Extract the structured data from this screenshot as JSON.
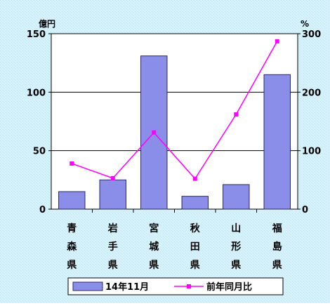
{
  "chart_data": {
    "type": "bar",
    "categories": [
      "青森県",
      "岩手県",
      "宮城県",
      "秋田県",
      "山形県",
      "福島県"
    ],
    "series": [
      {
        "name": "14年11月",
        "type": "bar",
        "axis": "left",
        "values": [
          15,
          25,
          131,
          11,
          21,
          115
        ]
      },
      {
        "name": "前年同月比",
        "type": "line",
        "axis": "right",
        "values": [
          78,
          53,
          131,
          52,
          162,
          287
        ]
      }
    ],
    "left_axis": {
      "unit": "億円",
      "ylim": [
        0,
        150
      ],
      "ticks": [
        "0",
        "50",
        "100",
        "150"
      ]
    },
    "right_axis": {
      "unit": "%",
      "ylim": [
        0,
        300
      ],
      "ticks": [
        "0",
        "100",
        "200",
        "300"
      ]
    },
    "grid": true,
    "legend_position": "bottom",
    "colors": {
      "background": "#d6f0f8",
      "plot_area": "#ffffff",
      "bar_fill": "#8a8ee8",
      "bar_stroke": "#2a2a6a",
      "line": "#ff00ff",
      "grid": "#000000"
    }
  }
}
